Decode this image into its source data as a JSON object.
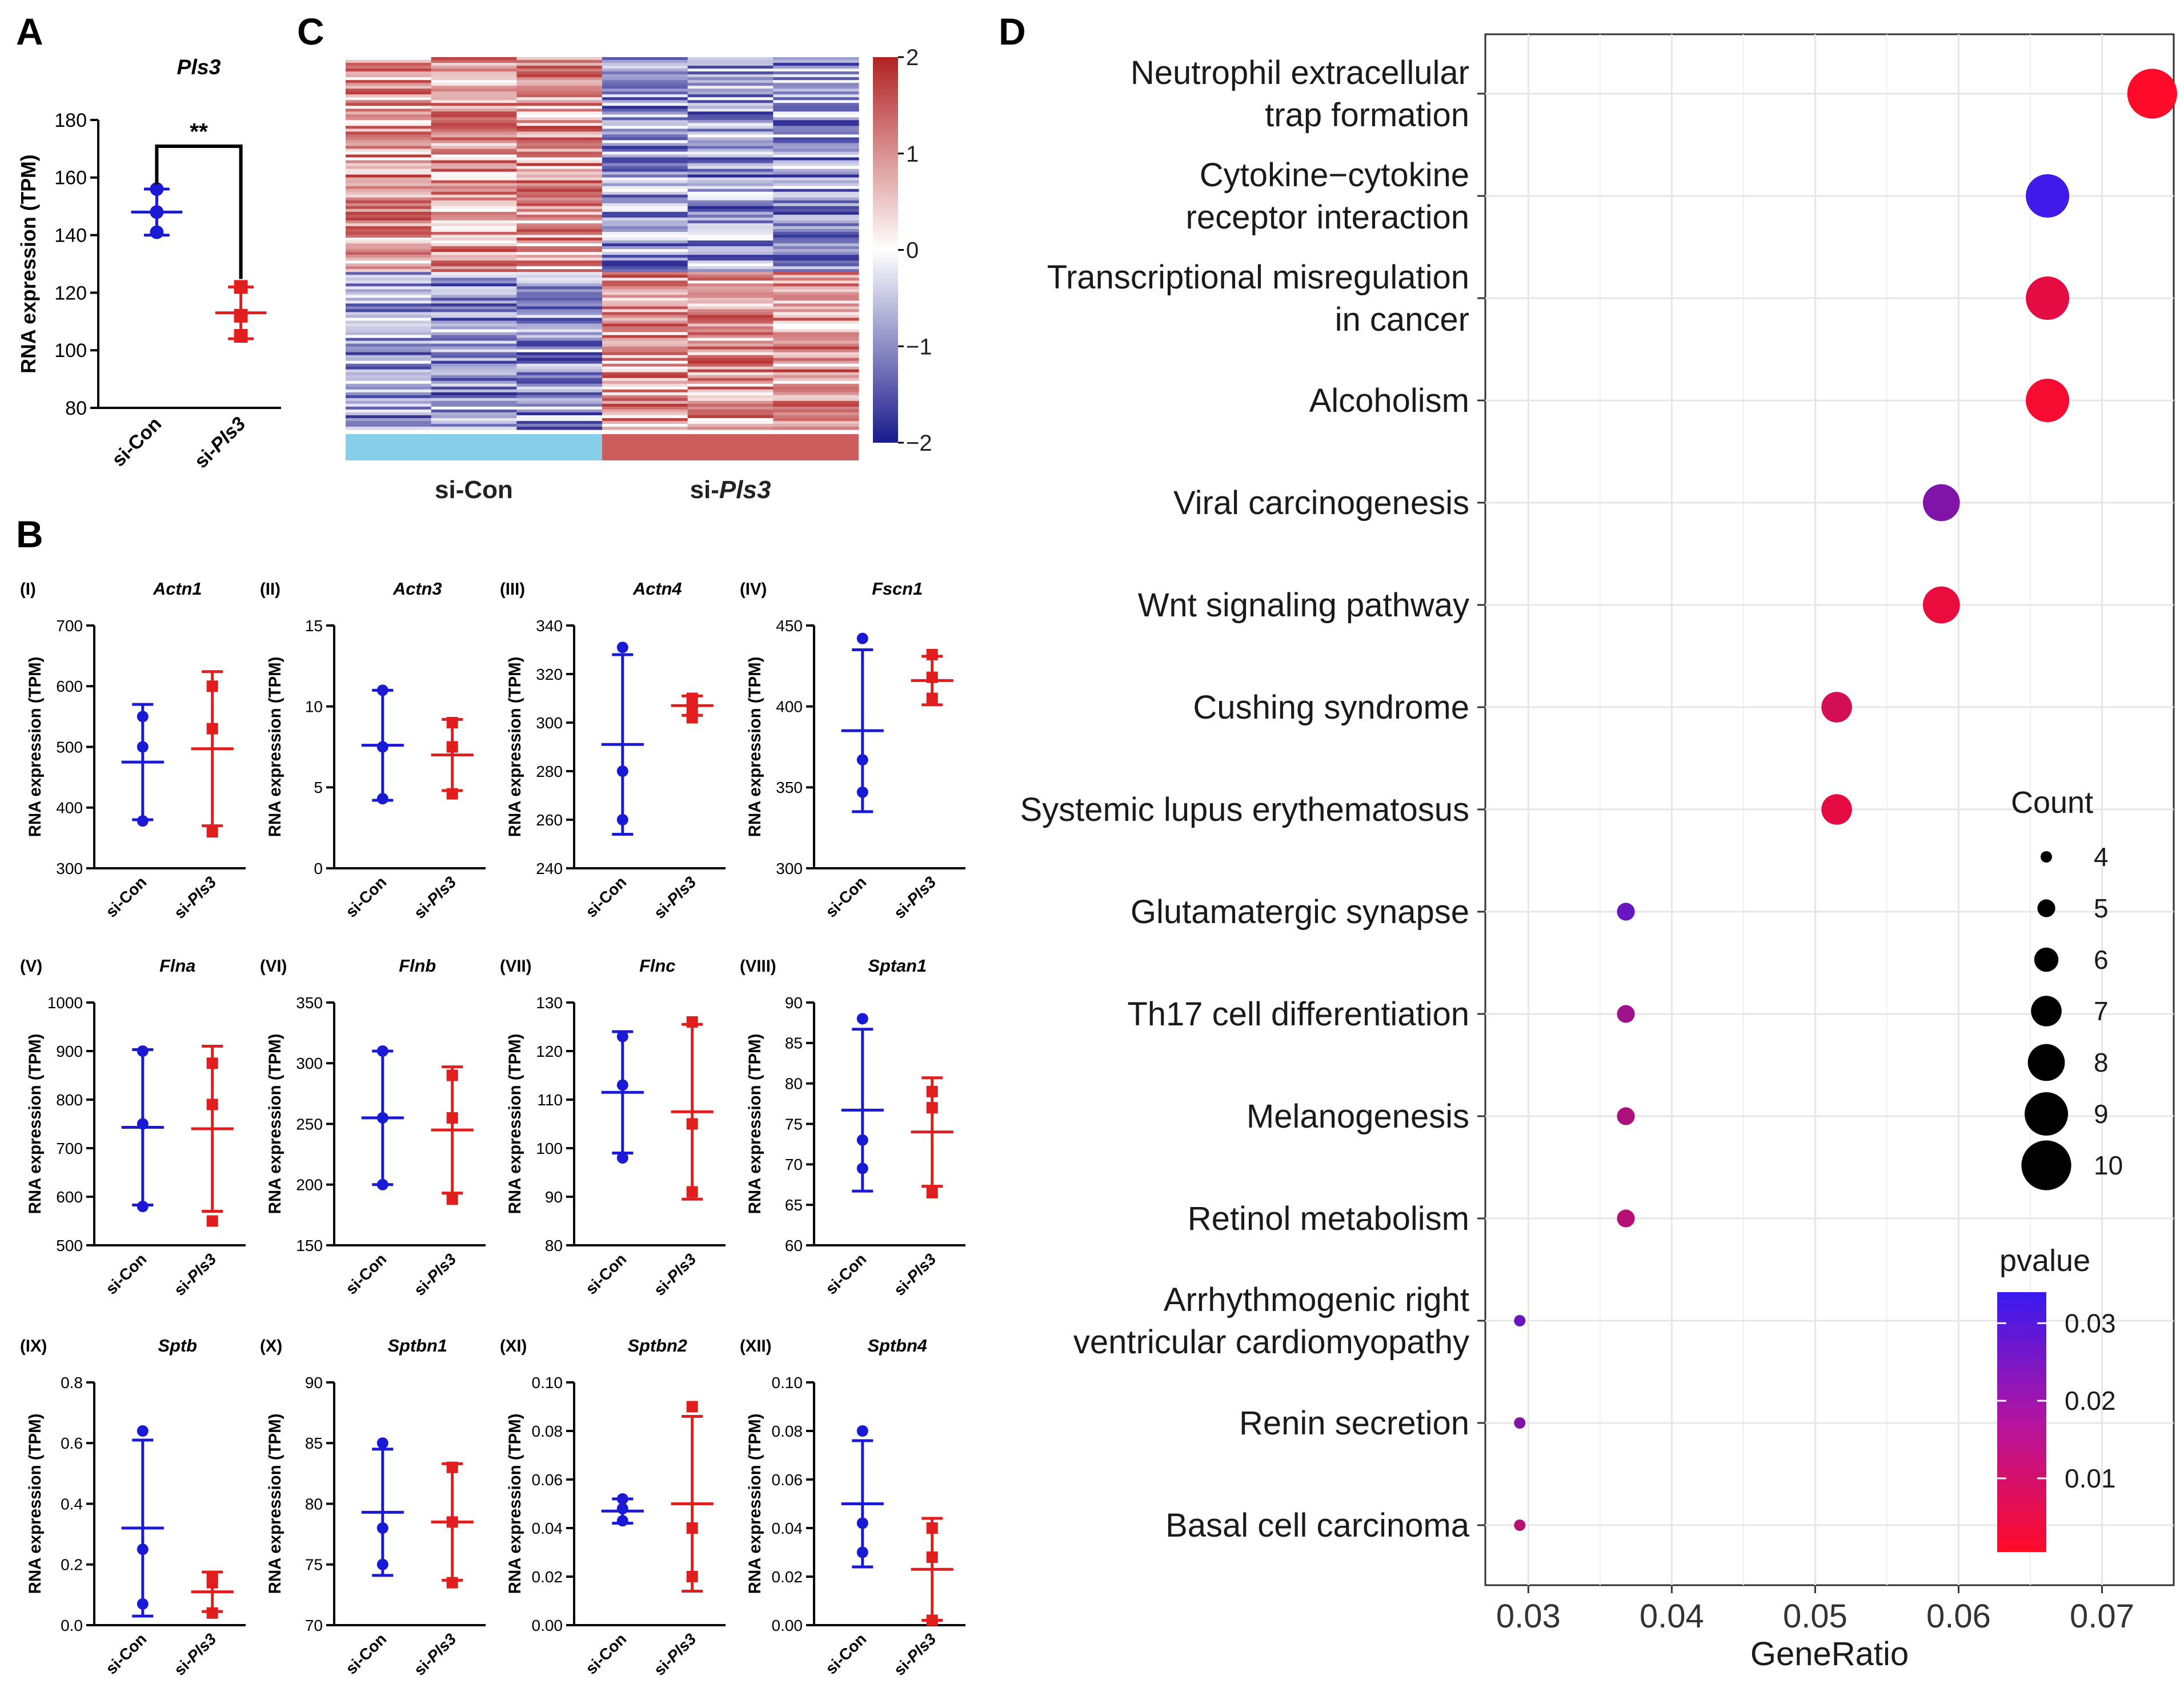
{
  "panel_letters": {
    "A": "A",
    "B": "B",
    "C": "C",
    "D": "D"
  },
  "colors": {
    "con": "#1a1ad6",
    "pls": "#e21d1d",
    "heat_low": "#1a1a8c",
    "heat_mid": "#ffffff",
    "heat_high": "#b22222",
    "bar_con": "#87ceeb",
    "bar_pls": "#cd5c5c",
    "grid": "#e6e6e6",
    "p_high": "#ff0a28",
    "p_low": "#3a1af0"
  },
  "chart_data": [
    {
      "id": "A",
      "type": "scatter",
      "title": "Pls3",
      "ylabel": "RNA expression (TPM)",
      "ylim": [
        80,
        180
      ],
      "yticks": [
        80,
        100,
        120,
        140,
        160,
        180
      ],
      "groups": [
        {
          "name": "si-Con",
          "points": [
            156,
            148,
            141
          ],
          "mean": 148,
          "sd": 8
        },
        {
          "name": "si-Pls3",
          "points": [
            122,
            112,
            105
          ],
          "mean": 113,
          "sd": 9
        }
      ],
      "annotation": "**"
    },
    {
      "id": "B-I",
      "type": "scatter",
      "roman": "(I)",
      "title": "Actn1",
      "ylabel": "RNA expression (TPM)",
      "ylim": [
        300,
        700
      ],
      "yticks": [
        300,
        400,
        500,
        600,
        700
      ],
      "groups": [
        {
          "name": "si-Con",
          "points": [
            550,
            500,
            378
          ],
          "mean": 475,
          "sd": 95
        },
        {
          "name": "si-Pls3",
          "points": [
            600,
            530,
            360
          ],
          "mean": 497,
          "sd": 127
        }
      ]
    },
    {
      "id": "B-II",
      "type": "scatter",
      "roman": "(II)",
      "title": "Actn3",
      "ylabel": "RNA expression (TPM)",
      "ylim": [
        0,
        15
      ],
      "yticks": [
        0,
        5,
        10,
        15
      ],
      "groups": [
        {
          "name": "si-Con",
          "points": [
            11,
            7.5,
            4.3
          ],
          "mean": 7.6,
          "sd": 3.4
        },
        {
          "name": "si-Pls3",
          "points": [
            9,
            7.5,
            4.6
          ],
          "mean": 7,
          "sd": 2.2
        }
      ]
    },
    {
      "id": "B-III",
      "type": "scatter",
      "roman": "(III)",
      "title": "Actn4",
      "ylabel": "RNA expression (TPM)",
      "ylim": [
        240,
        340
      ],
      "yticks": [
        240,
        260,
        280,
        300,
        320,
        340
      ],
      "groups": [
        {
          "name": "si-Con",
          "points": [
            331,
            280,
            260
          ],
          "mean": 291,
          "sd": 37
        },
        {
          "name": "si-Pls3",
          "points": [
            310,
            306,
            302
          ],
          "mean": 307,
          "sd": 4
        }
      ]
    },
    {
      "id": "B-IV",
      "type": "scatter",
      "roman": "(IV)",
      "title": "Fscn1",
      "ylabel": "RNA expression (TPM)",
      "ylim": [
        300,
        450
      ],
      "yticks": [
        300,
        350,
        400,
        450
      ],
      "groups": [
        {
          "name": "si-Con",
          "points": [
            442,
            367,
            347
          ],
          "mean": 385,
          "sd": 50
        },
        {
          "name": "si-Pls3",
          "points": [
            432,
            418,
            405
          ],
          "mean": 416,
          "sd": 15
        }
      ]
    },
    {
      "id": "B-V",
      "type": "scatter",
      "roman": "(V)",
      "title": "Flna",
      "ylabel": "RNA expression (TPM)",
      "ylim": [
        500,
        1000
      ],
      "yticks": [
        500,
        600,
        700,
        800,
        900,
        1000
      ],
      "groups": [
        {
          "name": "si-Con",
          "points": [
            900,
            750,
            580
          ],
          "mean": 743,
          "sd": 160
        },
        {
          "name": "si-Pls3",
          "points": [
            875,
            790,
            550
          ],
          "mean": 740,
          "sd": 170
        }
      ]
    },
    {
      "id": "B-VI",
      "type": "scatter",
      "roman": "(VI)",
      "title": "Flnb",
      "ylabel": "RNA expression (TPM)",
      "ylim": [
        150,
        350
      ],
      "yticks": [
        150,
        200,
        250,
        300,
        350
      ],
      "groups": [
        {
          "name": "si-Con",
          "points": [
            310,
            255,
            200
          ],
          "mean": 255,
          "sd": 55
        },
        {
          "name": "si-Pls3",
          "points": [
            290,
            255,
            188
          ],
          "mean": 245,
          "sd": 52
        }
      ]
    },
    {
      "id": "B-VII",
      "type": "scatter",
      "roman": "(VII)",
      "title": "Flnc",
      "ylabel": "RNA expression (TPM)",
      "ylim": [
        80,
        130
      ],
      "yticks": [
        80,
        90,
        100,
        110,
        120,
        130
      ],
      "groups": [
        {
          "name": "si-Con",
          "points": [
            123,
            113,
            98
          ],
          "mean": 111.5,
          "sd": 12.5
        },
        {
          "name": "si-Pls3",
          "points": [
            126,
            105,
            91
          ],
          "mean": 107.5,
          "sd": 18
        }
      ]
    },
    {
      "id": "B-VIII",
      "type": "scatter",
      "roman": "(VIII)",
      "title": "Sptan1",
      "ylabel": "RNA expression (TPM)",
      "ylim": [
        60,
        90
      ],
      "yticks": [
        60,
        65,
        70,
        75,
        80,
        85,
        90
      ],
      "groups": [
        {
          "name": "si-Con",
          "points": [
            88,
            73,
            69.5
          ],
          "mean": 76.7,
          "sd": 10
        },
        {
          "name": "si-Pls3",
          "points": [
            79,
            77,
            66.5
          ],
          "mean": 74,
          "sd": 6.7
        }
      ]
    },
    {
      "id": "B-IX",
      "type": "scatter",
      "roman": "(IX)",
      "title": "Sptb",
      "ylabel": "RNA expression (TPM)",
      "ylim": [
        0,
        0.8
      ],
      "yticks": [
        0.0,
        0.2,
        0.4,
        0.6,
        0.8
      ],
      "groups": [
        {
          "name": "si-Con",
          "points": [
            0.64,
            0.25,
            0.07
          ],
          "mean": 0.32,
          "sd": 0.29
        },
        {
          "name": "si-Pls3",
          "points": [
            0.16,
            0.14,
            0.04
          ],
          "mean": 0.11,
          "sd": 0.065
        }
      ]
    },
    {
      "id": "B-X",
      "type": "scatter",
      "roman": "(X)",
      "title": "Sptbn1",
      "ylabel": "RNA expression (TPM)",
      "ylim": [
        70,
        90
      ],
      "yticks": [
        70,
        75,
        80,
        85,
        90
      ],
      "groups": [
        {
          "name": "si-Con",
          "points": [
            85,
            78,
            75
          ],
          "mean": 79.3,
          "sd": 5.2
        },
        {
          "name": "si-Pls3",
          "points": [
            83,
            78.5,
            73.5
          ],
          "mean": 78.5,
          "sd": 4.8
        }
      ]
    },
    {
      "id": "B-XI",
      "type": "scatter",
      "roman": "(XI)",
      "title": "Sptbn2",
      "ylabel": "RNA expression (TPM)",
      "ylim": [
        0,
        0.1
      ],
      "yticks": [
        0.0,
        0.02,
        0.04,
        0.06,
        0.08,
        0.1
      ],
      "groups": [
        {
          "name": "si-Con",
          "points": [
            0.052,
            0.048,
            0.043
          ],
          "mean": 0.047,
          "sd": 0.005
        },
        {
          "name": "si-Pls3",
          "points": [
            0.09,
            0.04,
            0.02
          ],
          "mean": 0.05,
          "sd": 0.036
        }
      ]
    },
    {
      "id": "B-XII",
      "type": "scatter",
      "roman": "(XII)",
      "title": "Sptbn4",
      "ylabel": "RNA expression (TPM)",
      "ylim": [
        0,
        0.1
      ],
      "yticks": [
        0.0,
        0.02,
        0.04,
        0.06,
        0.08,
        0.1
      ],
      "groups": [
        {
          "name": "si-Con",
          "points": [
            0.08,
            0.042,
            0.03
          ],
          "mean": 0.05,
          "sd": 0.026
        },
        {
          "name": "si-Pls3",
          "points": [
            0.04,
            0.028,
            0.002
          ],
          "mean": 0.023,
          "sd": 0.021
        }
      ]
    },
    {
      "id": "C",
      "type": "heatmap",
      "columns": [
        "si-Con",
        "si-Con",
        "si-Con",
        "si-Pls3",
        "si-Pls3",
        "si-Pls3"
      ],
      "group_labels": [
        "si-Con",
        "si-Pls3"
      ],
      "colorbar": {
        "ticks": [
          2,
          1,
          0,
          -1,
          -2
        ],
        "tick_labels": [
          "2",
          "1",
          "0",
          "−1",
          "−2"
        ]
      },
      "pattern": {
        "upper_block_fraction": 0.58,
        "up_in": "si-Con",
        "down_in": "si-Pls3"
      }
    },
    {
      "id": "D",
      "type": "scatter",
      "subtype": "dotplot",
      "xlabel": "GeneRatio",
      "xlim": [
        0.027,
        0.075
      ],
      "xticks": [
        0.03,
        0.04,
        0.05,
        0.06,
        0.07
      ],
      "terms": [
        {
          "name": [
            "Neutrophil extracellular",
            "trap formation"
          ],
          "gene_ratio": 0.0735,
          "count": 10,
          "pvalue": 0.0005
        },
        {
          "name": [
            "Cytokine−cytokine",
            "receptor interaction"
          ],
          "gene_ratio": 0.0662,
          "count": 9,
          "pvalue": 0.033
        },
        {
          "name": [
            "Transcriptional misregulation",
            "in cancer"
          ],
          "gene_ratio": 0.0662,
          "count": 9,
          "pvalue": 0.005
        },
        {
          "name": [
            "Alcoholism"
          ],
          "gene_ratio": 0.0662,
          "count": 9,
          "pvalue": 0.002
        },
        {
          "name": [
            "Viral carcinogenesis"
          ],
          "gene_ratio": 0.0588,
          "count": 8,
          "pvalue": 0.022
        },
        {
          "name": [
            "Wnt signaling pathway"
          ],
          "gene_ratio": 0.0588,
          "count": 8,
          "pvalue": 0.004
        },
        {
          "name": [
            "Cushing syndrome"
          ],
          "gene_ratio": 0.0515,
          "count": 7,
          "pvalue": 0.008
        },
        {
          "name": [
            "Systemic lupus erythematosus"
          ],
          "gene_ratio": 0.0515,
          "count": 7,
          "pvalue": 0.005
        },
        {
          "name": [
            "Glutamatergic synapse"
          ],
          "gene_ratio": 0.0368,
          "count": 5,
          "pvalue": 0.026
        },
        {
          "name": [
            "Th17 cell differentiation"
          ],
          "gene_ratio": 0.0368,
          "count": 5,
          "pvalue": 0.017
        },
        {
          "name": [
            "Melanogenesis"
          ],
          "gene_ratio": 0.0368,
          "count": 5,
          "pvalue": 0.015
        },
        {
          "name": [
            "Retinol metabolism"
          ],
          "gene_ratio": 0.0368,
          "count": 5,
          "pvalue": 0.013
        },
        {
          "name": [
            "Arrhythmogenic right",
            "ventricular cardiomyopathy"
          ],
          "gene_ratio": 0.0294,
          "count": 4,
          "pvalue": 0.026
        },
        {
          "name": [
            "Renin secretion"
          ],
          "gene_ratio": 0.0294,
          "count": 4,
          "pvalue": 0.022
        },
        {
          "name": [
            "Basal cell carcinoma"
          ],
          "gene_ratio": 0.0294,
          "count": 4,
          "pvalue": 0.013
        }
      ],
      "size_legend": {
        "title": "Count",
        "values": [
          4,
          5,
          6,
          7,
          8,
          9,
          10
        ]
      },
      "color_legend": {
        "title": "pvalue",
        "ticks": [
          0.03,
          0.02,
          0.01
        ],
        "tick_labels": [
          "0.03",
          "0.02",
          "0.01"
        ],
        "range": [
          0.0005,
          0.034
        ]
      },
      "grid": true
    }
  ]
}
